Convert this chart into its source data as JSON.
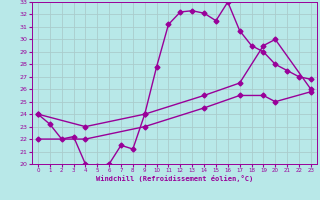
{
  "xlabel": "Windchill (Refroidissement éolien,°C)",
  "xlim": [
    -0.5,
    23.5
  ],
  "ylim": [
    20,
    33
  ],
  "xticks": [
    0,
    1,
    2,
    3,
    4,
    5,
    6,
    7,
    8,
    9,
    10,
    11,
    12,
    13,
    14,
    15,
    16,
    17,
    18,
    19,
    20,
    21,
    22,
    23
  ],
  "yticks": [
    20,
    21,
    22,
    23,
    24,
    25,
    26,
    27,
    28,
    29,
    30,
    31,
    32,
    33
  ],
  "bg_color": "#b8e8e8",
  "grid_color": "#aacccc",
  "line_color": "#990099",
  "curve1_x": [
    0,
    1,
    2,
    3,
    4,
    5,
    6,
    7,
    8,
    9,
    10,
    11,
    12,
    13,
    14,
    15,
    16,
    17,
    18,
    19,
    20,
    21,
    22,
    23
  ],
  "curve1_y": [
    24.0,
    23.2,
    22.0,
    22.2,
    20.0,
    19.8,
    20.0,
    21.5,
    21.2,
    24.0,
    27.8,
    31.2,
    32.2,
    32.3,
    32.1,
    31.5,
    33.0,
    30.7,
    29.5,
    29.0,
    28.0,
    27.5,
    27.0,
    26.8
  ],
  "curve2_x": [
    0,
    4,
    9,
    14,
    17,
    19,
    20,
    23
  ],
  "curve2_y": [
    24.0,
    23.0,
    24.0,
    25.5,
    26.5,
    29.5,
    30.0,
    26.0
  ],
  "curve3_x": [
    0,
    4,
    9,
    14,
    17,
    19,
    20,
    23
  ],
  "curve3_y": [
    22.0,
    22.0,
    23.0,
    24.5,
    25.5,
    25.5,
    25.0,
    25.8
  ],
  "markersize": 2.5,
  "linewidth": 1.0
}
